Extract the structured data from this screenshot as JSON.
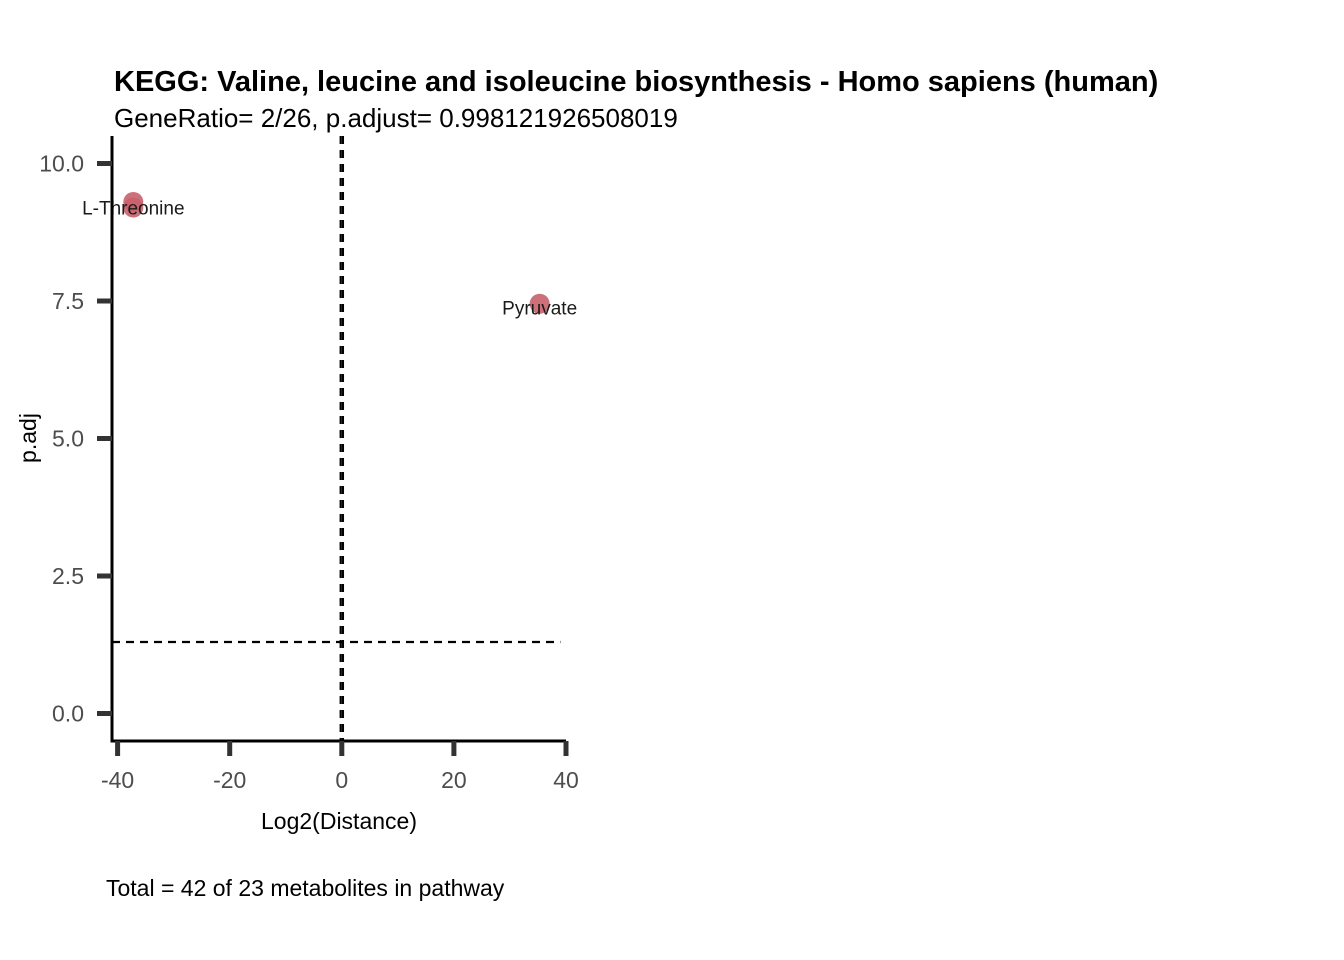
{
  "chart_data": {
    "type": "scatter",
    "title": "KEGG: Valine, leucine and isoleucine biosynthesis - Homo sapiens (human)",
    "subtitle": "GeneRatio= 2/26, p.adjust= 0.998121926508019",
    "xlabel": "Log2(Distance)",
    "ylabel": "p.adj",
    "caption": "Total = 42 of 23 metabolites in pathway",
    "xlim": [
      -41,
      40
    ],
    "ylim": [
      -0.5,
      10.5
    ],
    "xticks": [
      -40,
      -20,
      0,
      20,
      40
    ],
    "xtick_labels": [
      "-40",
      "-20",
      "0",
      "20",
      "40"
    ],
    "yticks": [
      0,
      2.5,
      5,
      7.5,
      10
    ],
    "ytick_labels": [
      "0.0",
      "2.5",
      "5.0",
      "7.5",
      "10.0"
    ],
    "vlines": [
      -0.2,
      0.2
    ],
    "hline": 1.3,
    "hline_xrange": [
      -41,
      39
    ],
    "grid": false,
    "point_color": "#c9606c",
    "points": [
      {
        "label": "L-Threonine",
        "x": -37.2,
        "y": 9.2
      },
      {
        "label": "L-Threonine",
        "x": -37.2,
        "y": 9.3
      },
      {
        "label": "Pyruvate",
        "x": 35.3,
        "y": 7.45
      }
    ],
    "labels": [
      {
        "text": "L-Threonine",
        "x": -37.2,
        "y": 9.2
      },
      {
        "text": "Pyruvate",
        "x": 35.3,
        "y": 7.38
      }
    ]
  }
}
